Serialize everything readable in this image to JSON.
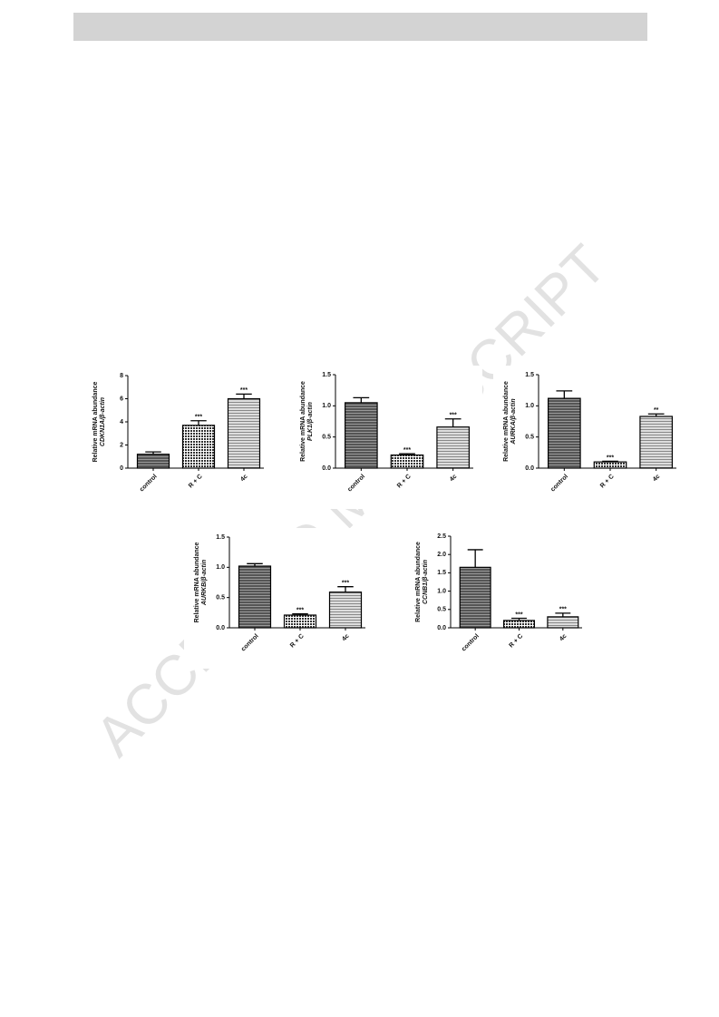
{
  "watermark": "ACCEPTED MANUSCRIPT",
  "chart_data": [
    {
      "type": "bar",
      "ylabel": "Relative mRNA abundance",
      "ylabel2": "CDKN1A/β-actin",
      "categories": [
        "control",
        "R + C",
        "4c"
      ],
      "values": [
        1.2,
        3.7,
        6.0
      ],
      "errors": [
        0.2,
        0.4,
        0.4
      ],
      "annotations": [
        null,
        "***",
        "***"
      ],
      "ylim": [
        0,
        8
      ],
      "yticks": [
        0,
        2,
        4,
        6,
        8
      ]
    },
    {
      "type": "bar",
      "ylabel": "Relative mRNA abundance",
      "ylabel2": "PLK1/β-actin",
      "categories": [
        "control",
        "R + C",
        "4c"
      ],
      "values": [
        1.05,
        0.21,
        0.66
      ],
      "errors": [
        0.08,
        0.02,
        0.13
      ],
      "annotations": [
        null,
        "***",
        "***"
      ],
      "ylim": [
        0,
        1.5
      ],
      "yticks": [
        {
          "value": 0,
          "label": "0.0"
        },
        0.5,
        {
          "value": 1,
          "label": "1.0"
        },
        1.5
      ]
    },
    {
      "type": "bar",
      "ylabel": "Relative mRNA abundance",
      "ylabel2": "AURKA/β-actin",
      "categories": [
        "control",
        "R + C",
        "4c"
      ],
      "values": [
        1.12,
        0.1,
        0.83
      ],
      "errors": [
        0.12,
        0.01,
        0.04
      ],
      "annotations": [
        null,
        "***",
        "**"
      ],
      "ylim": [
        0,
        1.5
      ],
      "yticks": [
        {
          "value": 0,
          "label": "0.0"
        },
        0.5,
        {
          "value": 1,
          "label": "1.0"
        },
        1.5
      ]
    },
    {
      "type": "bar",
      "ylabel": "Relative mRNA abundance",
      "ylabel2": "AURKB/β-actin",
      "categories": [
        "control",
        "R + C",
        "4c"
      ],
      "values": [
        1.02,
        0.21,
        0.59
      ],
      "errors": [
        0.04,
        0.02,
        0.09
      ],
      "annotations": [
        null,
        "***",
        "***"
      ],
      "ylim": [
        0,
        1.5
      ],
      "yticks": [
        {
          "value": 0,
          "label": "0.0"
        },
        0.5,
        {
          "value": 1,
          "label": "1.0"
        },
        1.5
      ]
    },
    {
      "type": "bar",
      "ylabel": "Relative mRNA abundance",
      "ylabel2": "CCNB1/β-actin",
      "categories": [
        "control",
        "R + C",
        "4c"
      ],
      "values": [
        1.65,
        0.2,
        0.3
      ],
      "errors": [
        0.48,
        0.06,
        0.1
      ],
      "annotations": [
        null,
        "***",
        "***"
      ],
      "ylim": [
        0,
        2.5
      ],
      "yticks": [
        {
          "value": 0,
          "label": "0.0"
        },
        0.5,
        {
          "value": 1,
          "label": "1.0"
        },
        1.5,
        {
          "value": 2,
          "label": "2.0"
        },
        2.5
      ]
    }
  ]
}
